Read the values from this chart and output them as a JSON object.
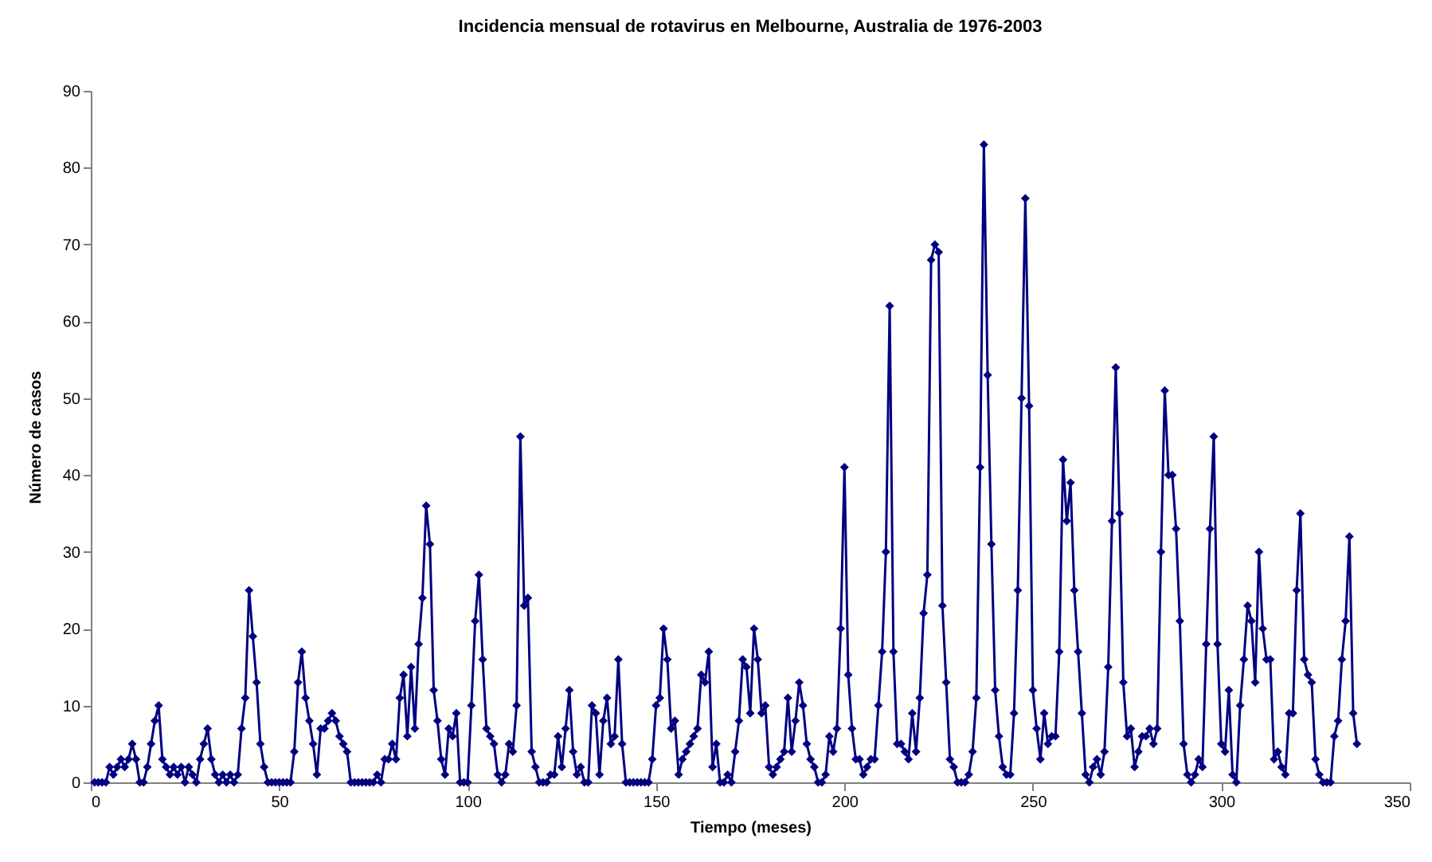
{
  "chart_data": {
    "type": "line",
    "title": "Incidencia mensual de rotavirus en Melbourne, Australia de 1976-2003",
    "xlabel": "Tiempo (meses)",
    "ylabel": "Número de casos",
    "x": [
      1,
      2,
      3,
      4,
      5,
      6,
      7,
      8,
      9,
      10,
      11,
      12,
      13,
      14,
      15,
      16,
      17,
      18,
      19,
      20,
      21,
      22,
      23,
      24,
      25,
      26,
      27,
      28,
      29,
      30,
      31,
      32,
      33,
      34,
      35,
      36,
      37,
      38,
      39,
      40,
      41,
      42,
      43,
      44,
      45,
      46,
      47,
      48,
      49,
      50,
      51,
      52,
      53,
      54,
      55,
      56,
      57,
      58,
      59,
      60,
      61,
      62,
      63,
      64,
      65,
      66,
      67,
      68,
      69,
      70,
      71,
      72,
      73,
      74,
      75,
      76,
      77,
      78,
      79,
      80,
      81,
      82,
      83,
      84,
      85,
      86,
      87,
      88,
      89,
      90,
      91,
      92,
      93,
      94,
      95,
      96,
      97,
      98,
      99,
      100,
      101,
      102,
      103,
      104,
      105,
      106,
      107,
      108,
      109,
      110,
      111,
      112,
      113,
      114,
      115,
      116,
      117,
      118,
      119,
      120,
      121,
      122,
      123,
      124,
      125,
      126,
      127,
      128,
      129,
      130,
      131,
      132,
      133,
      134,
      135,
      136,
      137,
      138,
      139,
      140,
      141,
      142,
      143,
      144,
      145,
      146,
      147,
      148,
      149,
      150,
      151,
      152,
      153,
      154,
      155,
      156,
      157,
      158,
      159,
      160,
      161,
      162,
      163,
      164,
      165,
      166,
      167,
      168,
      169,
      170,
      171,
      172,
      173,
      174,
      175,
      176,
      177,
      178,
      179,
      180,
      181,
      182,
      183,
      184,
      185,
      186,
      187,
      188,
      189,
      190,
      191,
      192,
      193,
      194,
      195,
      196,
      197,
      198,
      199,
      200,
      201,
      202,
      203,
      204,
      205,
      206,
      207,
      208,
      209,
      210,
      211,
      212,
      213,
      214,
      215,
      216,
      217,
      218,
      219,
      220,
      221,
      222,
      223,
      224,
      225,
      226,
      227,
      228,
      229,
      230,
      231,
      232,
      233,
      234,
      235,
      236,
      237,
      238,
      239,
      240,
      241,
      242,
      243,
      244,
      245,
      246,
      247,
      248,
      249,
      250,
      251,
      252,
      253,
      254,
      255,
      256,
      257,
      258,
      259,
      260,
      261,
      262,
      263,
      264,
      265,
      266,
      267,
      268,
      269,
      270,
      271,
      272,
      273,
      274,
      275,
      276,
      277,
      278,
      279,
      280,
      281,
      282,
      283,
      284,
      285,
      286,
      287,
      288,
      289,
      290,
      291,
      292,
      293,
      294,
      295,
      296,
      297,
      298,
      299,
      300,
      301,
      302,
      303,
      304,
      305,
      306,
      307,
      308,
      309,
      310,
      311,
      312,
      313,
      314,
      315,
      316,
      317,
      318,
      319,
      320,
      321,
      322,
      323,
      324,
      325,
      326,
      327,
      328,
      329,
      330,
      331,
      332,
      333,
      334,
      335,
      336
    ],
    "series": [
      {
        "color": "#000080",
        "values": [
          0,
          0,
          0,
          0,
          2,
          1,
          2,
          3,
          2,
          3,
          5,
          3,
          0,
          0,
          2,
          5,
          8,
          10,
          3,
          2,
          1,
          2,
          1,
          2,
          0,
          2,
          1,
          0,
          3,
          5,
          7,
          3,
          1,
          0,
          1,
          0,
          1,
          0,
          1,
          7,
          11,
          25,
          19,
          13,
          5,
          2,
          0,
          0,
          0,
          0,
          0,
          0,
          0,
          4,
          13,
          17,
          11,
          8,
          5,
          1,
          7,
          7,
          8,
          9,
          8,
          6,
          5,
          4,
          0,
          0,
          0,
          0,
          0,
          0,
          0,
          1,
          0,
          3,
          3,
          5,
          3,
          11,
          14,
          6,
          15,
          7,
          18,
          24,
          36,
          31,
          12,
          8,
          3,
          1,
          7,
          6,
          9,
          0,
          0,
          0,
          10,
          21,
          27,
          16,
          7,
          6,
          5,
          1,
          0,
          1,
          5,
          4,
          10,
          45,
          23,
          24,
          4,
          2,
          0,
          0,
          0,
          1,
          1,
          6,
          2,
          7,
          12,
          4,
          1,
          2,
          0,
          0,
          10,
          9,
          1,
          8,
          11,
          5,
          6,
          16,
          5,
          0,
          0,
          0,
          0,
          0,
          0,
          0,
          3,
          10,
          11,
          20,
          16,
          7,
          8,
          1,
          3,
          4,
          5,
          6,
          7,
          14,
          13,
          17,
          2,
          5,
          0,
          0,
          1,
          0,
          4,
          8,
          16,
          15,
          9,
          20,
          16,
          9,
          10,
          2,
          1,
          2,
          3,
          4,
          11,
          4,
          8,
          13,
          10,
          5,
          3,
          2,
          0,
          0,
          1,
          6,
          4,
          7,
          20,
          41,
          14,
          7,
          3,
          3,
          1,
          2,
          3,
          3,
          10,
          17,
          30,
          62,
          17,
          5,
          5,
          4,
          3,
          9,
          4,
          11,
          22,
          27,
          68,
          70,
          69,
          23,
          13,
          3,
          2,
          0,
          0,
          0,
          1,
          4,
          11,
          41,
          83,
          53,
          31,
          12,
          6,
          2,
          1,
          1,
          9,
          25,
          50,
          76,
          49,
          12,
          7,
          3,
          9,
          5,
          6,
          6,
          17,
          42,
          34,
          39,
          25,
          17,
          9,
          1,
          0,
          2,
          3,
          1,
          4,
          15,
          34,
          54,
          35,
          13,
          6,
          7,
          2,
          4,
          6,
          6,
          7,
          5,
          7,
          30,
          51,
          40,
          40,
          33,
          21,
          5,
          1,
          0,
          1,
          3,
          2,
          18,
          33,
          45,
          18,
          5,
          4,
          12,
          1,
          0,
          10,
          16,
          23,
          21,
          13,
          30,
          20,
          16,
          16,
          3,
          4,
          2,
          1,
          9,
          9,
          25,
          35,
          16,
          14,
          13,
          3,
          1,
          0,
          0,
          0,
          6,
          8,
          16,
          21,
          32,
          9,
          5
        ]
      }
    ],
    "xlim": [
      0,
      350
    ],
    "xticks": [
      0,
      50,
      100,
      150,
      200,
      250,
      300,
      350
    ],
    "ylim": [
      0,
      90
    ],
    "yticks": [
      0,
      10,
      20,
      30,
      40,
      50,
      60,
      70,
      80,
      90
    ],
    "marker": "diamond"
  }
}
